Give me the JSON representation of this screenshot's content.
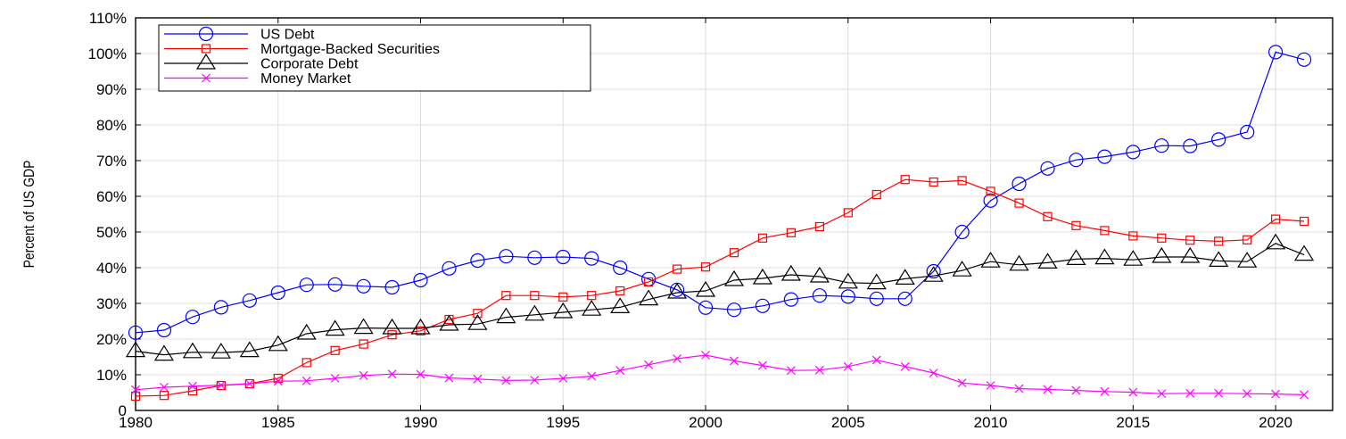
{
  "chart_data": {
    "type": "line",
    "ylabel": "Percent of US GDP",
    "xlim": [
      1980,
      2022
    ],
    "ylim": [
      0,
      110
    ],
    "xticks": [
      "1980",
      "1985",
      "1990",
      "1995",
      "2000",
      "2005",
      "2010",
      "2015",
      "2020"
    ],
    "yticks": [
      "0",
      "10%",
      "20%",
      "30%",
      "40%",
      "50%",
      "60%",
      "70%",
      "80%",
      "90%",
      "100%",
      "110%"
    ],
    "grid": true,
    "legend_position": "top-left",
    "x": [
      1980,
      1981,
      1982,
      1983,
      1984,
      1985,
      1986,
      1987,
      1988,
      1989,
      1990,
      1991,
      1992,
      1993,
      1994,
      1995,
      1996,
      1997,
      1998,
      1999,
      2000,
      2001,
      2002,
      2003,
      2004,
      2005,
      2006,
      2007,
      2008,
      2009,
      2010,
      2011,
      2012,
      2013,
      2014,
      2015,
      2016,
      2017,
      2018,
      2019,
      2020,
      2021
    ],
    "series": [
      {
        "name": "US Debt",
        "color": "#0000ff",
        "marker": "circle",
        "values": [
          21.8,
          22.5,
          26.2,
          28.9,
          30.8,
          33.0,
          35.2,
          35.3,
          34.8,
          34.5,
          36.5,
          39.8,
          42.0,
          43.2,
          42.8,
          43.0,
          42.6,
          40.0,
          36.8,
          33.8,
          28.8,
          28.2,
          29.3,
          31.1,
          32.2,
          31.9,
          31.3,
          31.3,
          39.0,
          50.0,
          58.8,
          63.5,
          67.8,
          70.2,
          71.1,
          72.4,
          74.2,
          74.1,
          75.9,
          78.0,
          100.4,
          98.3
        ]
      },
      {
        "name": "Mortgage-Backed Securities",
        "color": "#ff0000",
        "marker": "square",
        "values": [
          4.0,
          4.2,
          5.5,
          7.0,
          7.5,
          9.0,
          13.4,
          16.8,
          18.6,
          21.2,
          22.3,
          25.5,
          27.2,
          32.2,
          32.2,
          31.8,
          32.2,
          33.5,
          36.0,
          39.6,
          40.2,
          44.2,
          48.3,
          49.8,
          51.5,
          55.4,
          60.5,
          64.7,
          64.0,
          64.4,
          61.4,
          58.1,
          54.3,
          51.8,
          50.4,
          48.9,
          48.3,
          47.7,
          47.4,
          47.8,
          53.6,
          53.0
        ]
      },
      {
        "name": "Corporate Debt",
        "color": "#000000",
        "marker": "triangle",
        "values": [
          16.6,
          15.6,
          16.3,
          16.2,
          16.6,
          18.3,
          21.5,
          22.6,
          23.1,
          23.0,
          23.0,
          24.0,
          24.2,
          26.1,
          26.8,
          27.5,
          28.2,
          28.9,
          31.1,
          33.0,
          33.5,
          36.5,
          37.0,
          38.0,
          37.5,
          35.8,
          35.6,
          36.9,
          37.7,
          39.2,
          41.7,
          40.8,
          41.4,
          42.4,
          42.6,
          42.2,
          43.0,
          43.0,
          41.9,
          41.7,
          46.8,
          43.6
        ]
      },
      {
        "name": "Money Market",
        "color": "#ff00ff",
        "marker": "x",
        "values": [
          5.8,
          6.5,
          6.8,
          7.1,
          7.5,
          8.2,
          8.3,
          9.0,
          9.8,
          10.2,
          10.1,
          9.1,
          8.8,
          8.4,
          8.5,
          9.0,
          9.6,
          11.2,
          12.8,
          14.5,
          15.5,
          13.9,
          12.6,
          11.2,
          11.3,
          12.3,
          14.1,
          12.3,
          10.5,
          7.7,
          7.0,
          6.1,
          5.9,
          5.6,
          5.3,
          5.1,
          4.7,
          4.8,
          4.8,
          4.7,
          4.6,
          4.4
        ]
      }
    ]
  }
}
